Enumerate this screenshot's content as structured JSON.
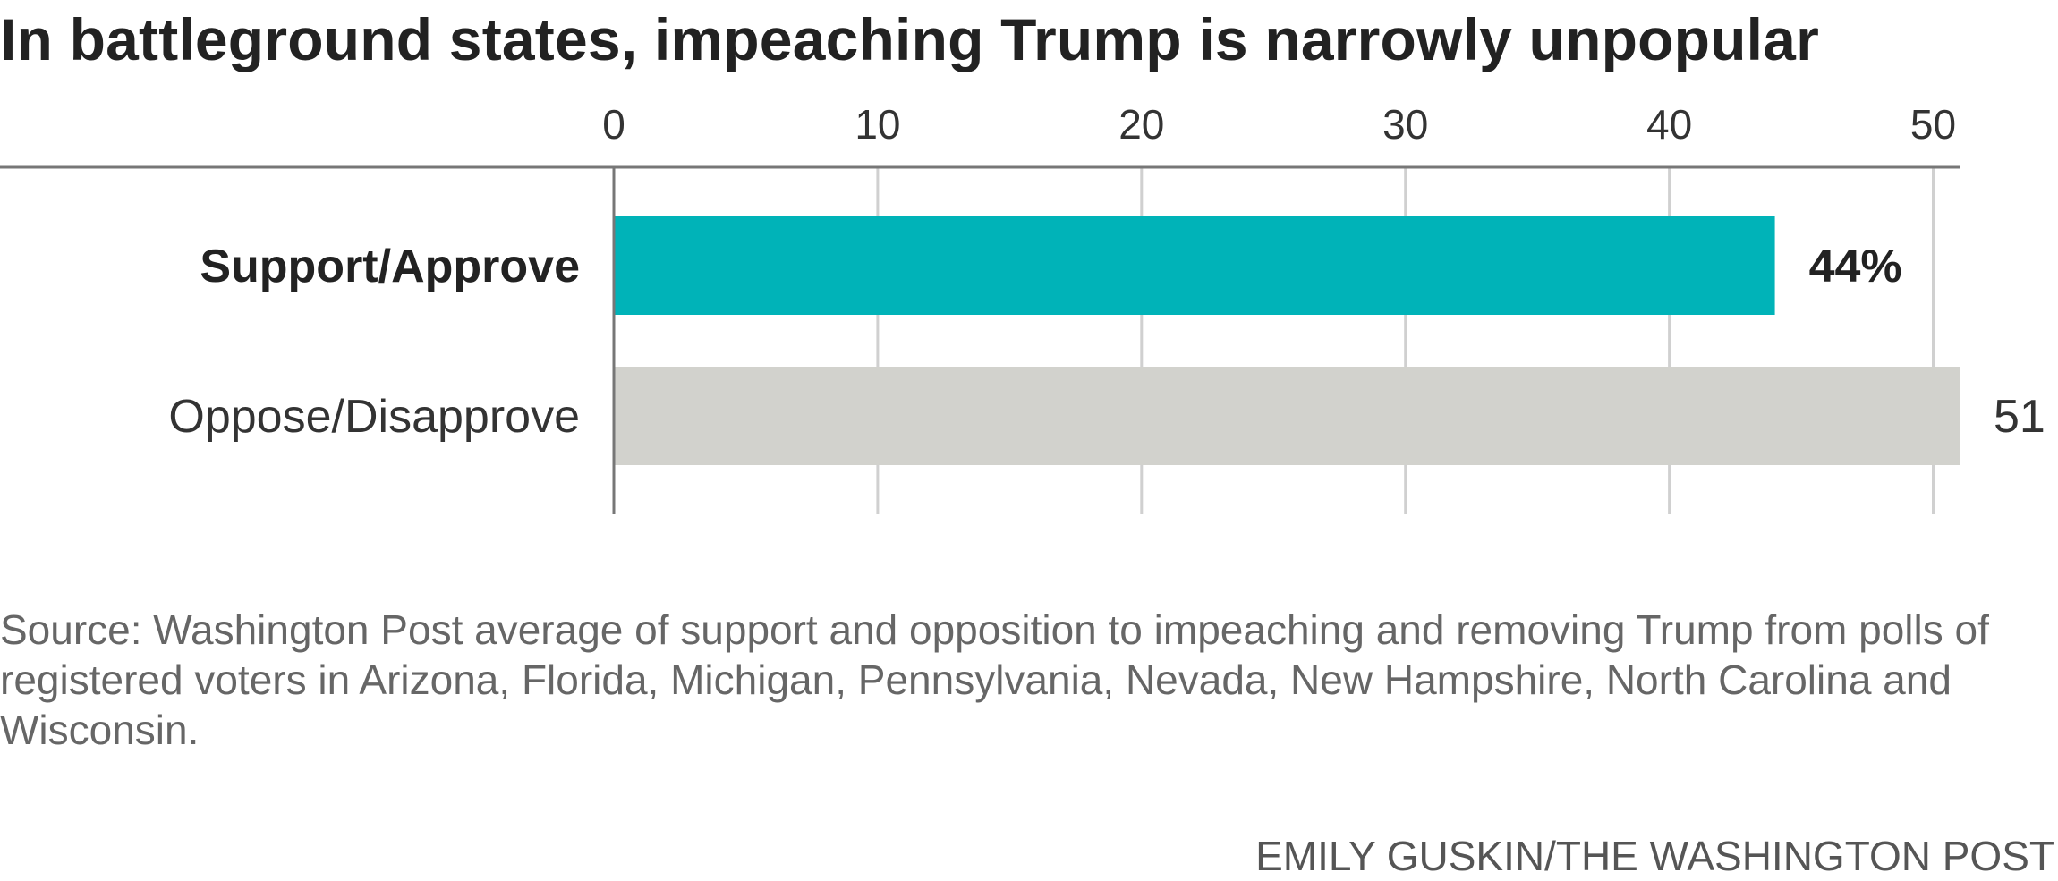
{
  "chart_data": {
    "type": "bar",
    "orientation": "horizontal",
    "title": "In battleground states, impeaching Trump is narrowly unpopular",
    "categories": [
      "Support/Approve",
      "Oppose/Disapprove"
    ],
    "values": [
      44,
      51
    ],
    "value_labels": [
      "44%",
      "51"
    ],
    "emphasis": [
      true,
      false
    ],
    "colors": [
      "#00b3b8",
      "#d2d2cd"
    ],
    "xlim": [
      0,
      51
    ],
    "xticks": [
      0,
      10,
      20,
      30,
      40,
      50
    ],
    "xtick_labels": [
      "0",
      "10",
      "20",
      "30",
      "40",
      "50"
    ],
    "xlabel": "",
    "ylabel": "",
    "grid": true
  },
  "source": "Source: Washington Post average of support and opposition to impeaching and removing Trump from polls of registered voters in Arizona, Florida, Michigan, Pennsylvania, Nevada, New Hampshire, North Carolina and Wisconsin.",
  "credit": "EMILY GUSKIN/THE WASHINGTON POST"
}
